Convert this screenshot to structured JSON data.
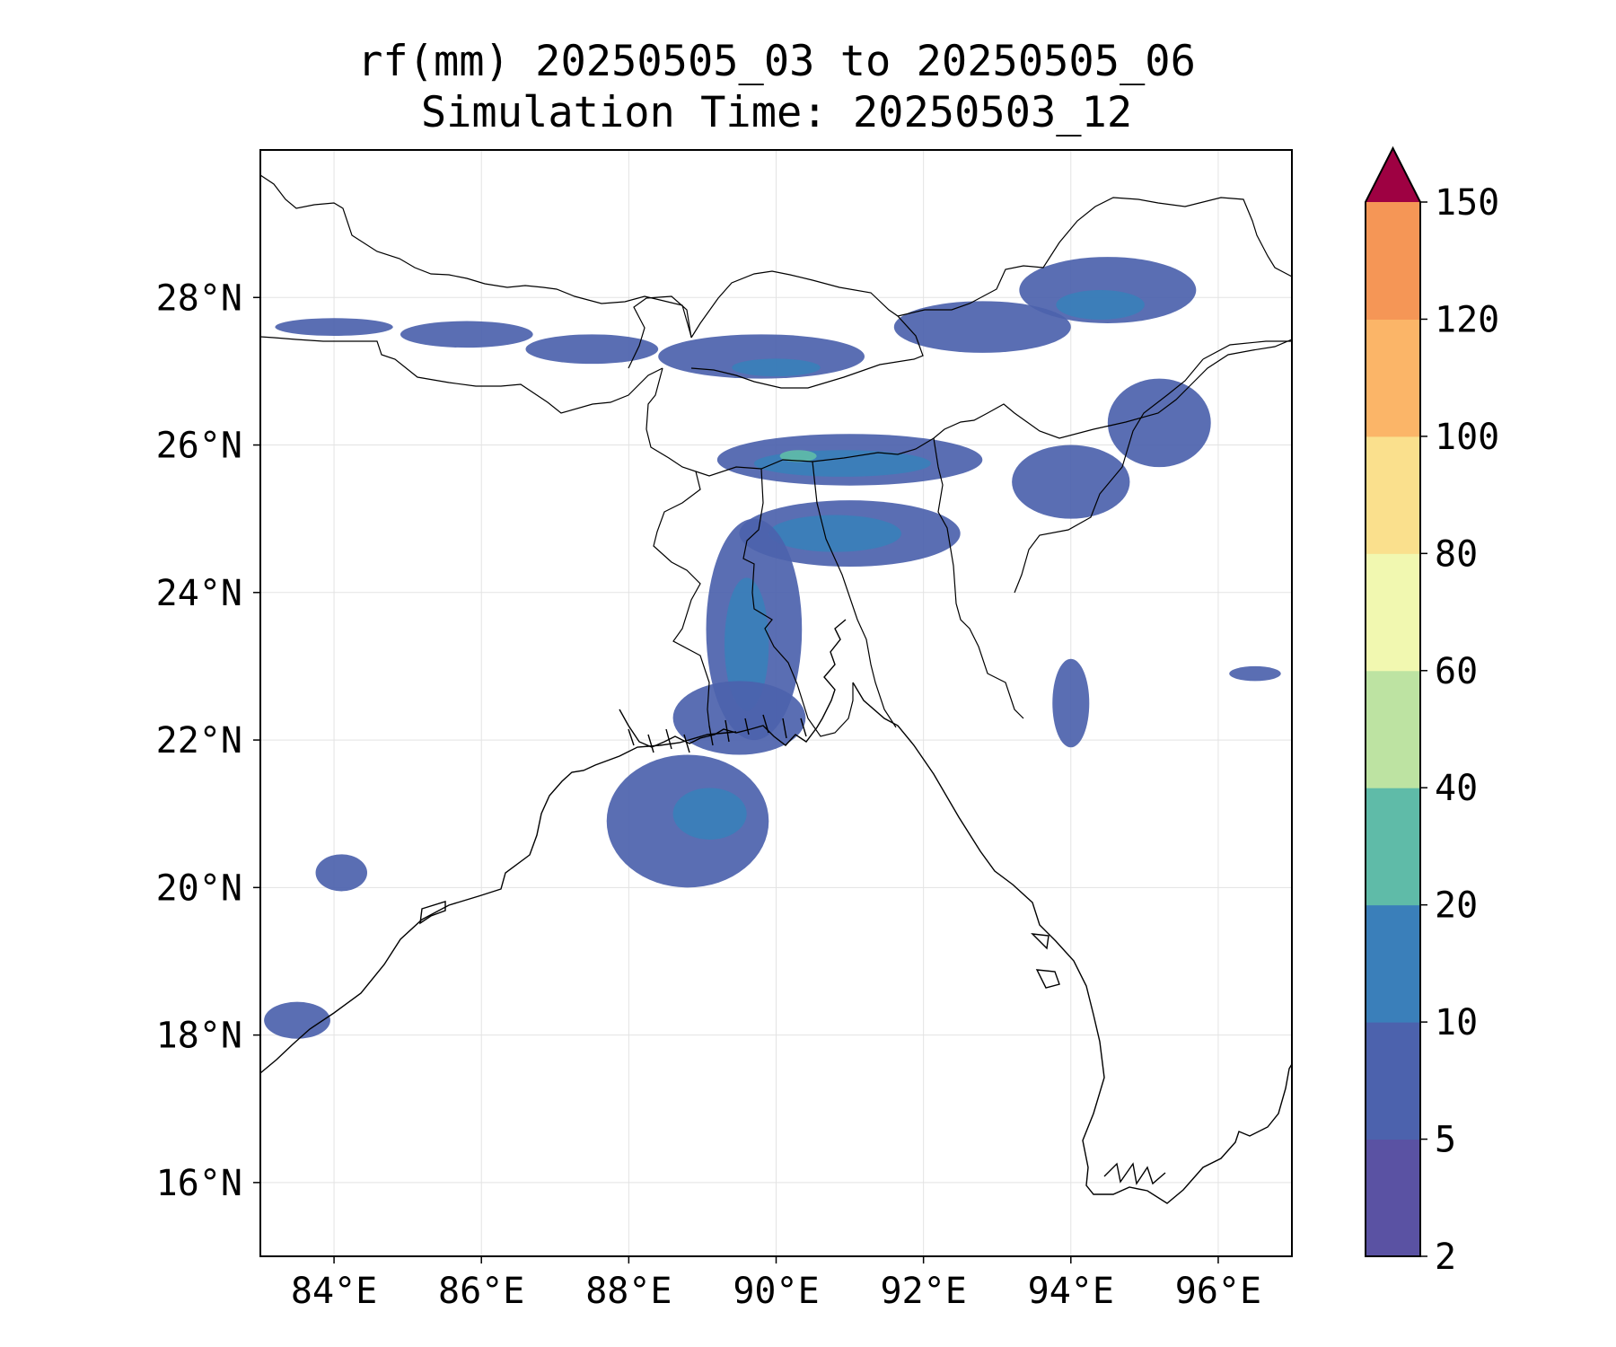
{
  "title": {
    "line1": "rf(mm) 20250505_03 to 20250505_06",
    "line2": "Simulation Time: 20250503_12"
  },
  "map": {
    "lon_range": [
      83,
      97
    ],
    "lat_range": [
      15,
      30
    ],
    "lon_ticks": [
      84,
      86,
      88,
      90,
      92,
      94,
      96
    ],
    "lat_ticks": [
      16,
      18,
      20,
      22,
      24,
      26,
      28
    ],
    "lon_tick_labels": [
      "84°E",
      "86°E",
      "88°E",
      "90°E",
      "92°E",
      "94°E",
      "96°E"
    ],
    "lat_tick_labels": [
      "16°N",
      "18°N",
      "20°N",
      "22°N",
      "24°N",
      "26°N",
      "28°N"
    ],
    "gridlines": true
  },
  "colorbar": {
    "levels": [
      2,
      5,
      10,
      20,
      40,
      60,
      80,
      100,
      120,
      150
    ],
    "labels": [
      "2",
      "5",
      "10",
      "20",
      "40",
      "60",
      "80",
      "100",
      "120",
      "150"
    ],
    "colors": [
      "#5a52a3",
      "#4c62ad",
      "#3a7fba",
      "#5fbba8",
      "#bde3a2",
      "#f1f8b0",
      "#fae08d",
      "#fbb568",
      "#f59656",
      "#d5404e"
    ],
    "extend_color": "#9e0142",
    "extend": "max"
  },
  "chart_data": {
    "type": "heatmap",
    "title": "rf(mm) 20250505_03 to 20250505_06",
    "subtitle": "Simulation Time: 20250503_12",
    "xlim": [
      83,
      97
    ],
    "ylim": [
      15,
      30
    ],
    "x_ticks": [
      "84°E",
      "86°E",
      "88°E",
      "90°E",
      "92°E",
      "94°E",
      "96°E"
    ],
    "y_ticks": [
      "16°N",
      "18°N",
      "20°N",
      "22°N",
      "24°N",
      "26°N",
      "28°N"
    ],
    "grid": true,
    "colorbar_levels_mm": [
      2,
      5,
      10,
      20,
      40,
      60,
      80,
      100,
      120,
      150
    ],
    "rain_regions": [
      {
        "lon": 84.0,
        "lat": 27.6,
        "rx": 0.8,
        "ry": 0.12,
        "level": 5
      },
      {
        "lon": 85.8,
        "lat": 27.5,
        "rx": 0.9,
        "ry": 0.18,
        "level": 5
      },
      {
        "lon": 87.5,
        "lat": 27.3,
        "rx": 0.9,
        "ry": 0.2,
        "level": 5
      },
      {
        "lon": 89.8,
        "lat": 27.2,
        "rx": 1.4,
        "ry": 0.3,
        "level": 5
      },
      {
        "lon": 90.0,
        "lat": 27.05,
        "rx": 0.6,
        "ry": 0.12,
        "level": 10
      },
      {
        "lon": 92.8,
        "lat": 27.6,
        "rx": 1.2,
        "ry": 0.35,
        "level": 5
      },
      {
        "lon": 94.5,
        "lat": 28.1,
        "rx": 1.2,
        "ry": 0.45,
        "level": 5
      },
      {
        "lon": 94.4,
        "lat": 27.9,
        "rx": 0.6,
        "ry": 0.2,
        "level": 10
      },
      {
        "lon": 91.0,
        "lat": 25.8,
        "rx": 1.8,
        "ry": 0.35,
        "level": 5
      },
      {
        "lon": 90.9,
        "lat": 25.75,
        "rx": 1.2,
        "ry": 0.18,
        "level": 10
      },
      {
        "lon": 90.3,
        "lat": 25.85,
        "rx": 0.25,
        "ry": 0.08,
        "level": 20
      },
      {
        "lon": 91.0,
        "lat": 24.8,
        "rx": 1.5,
        "ry": 0.45,
        "level": 5
      },
      {
        "lon": 90.8,
        "lat": 24.8,
        "rx": 0.9,
        "ry": 0.25,
        "level": 10
      },
      {
        "lon": 89.7,
        "lat": 23.5,
        "rx": 0.65,
        "ry": 1.5,
        "level": 5
      },
      {
        "lon": 89.6,
        "lat": 23.3,
        "rx": 0.3,
        "ry": 0.9,
        "level": 10
      },
      {
        "lon": 89.5,
        "lat": 22.3,
        "rx": 0.9,
        "ry": 0.5,
        "level": 5
      },
      {
        "lon": 88.8,
        "lat": 20.9,
        "rx": 1.1,
        "ry": 0.9,
        "level": 5
      },
      {
        "lon": 89.1,
        "lat": 21.0,
        "rx": 0.5,
        "ry": 0.35,
        "level": 10
      },
      {
        "lon": 94.0,
        "lat": 25.5,
        "rx": 0.8,
        "ry": 0.5,
        "level": 5
      },
      {
        "lon": 95.2,
        "lat": 26.3,
        "rx": 0.7,
        "ry": 0.6,
        "level": 5
      },
      {
        "lon": 94.0,
        "lat": 22.5,
        "rx": 0.25,
        "ry": 0.6,
        "level": 5
      },
      {
        "lon": 96.5,
        "lat": 22.9,
        "rx": 0.35,
        "ry": 0.1,
        "level": 5
      },
      {
        "lon": 84.1,
        "lat": 20.2,
        "rx": 0.35,
        "ry": 0.25,
        "level": 5
      },
      {
        "lon": 83.5,
        "lat": 18.2,
        "rx": 0.45,
        "ry": 0.25,
        "level": 5
      }
    ]
  }
}
